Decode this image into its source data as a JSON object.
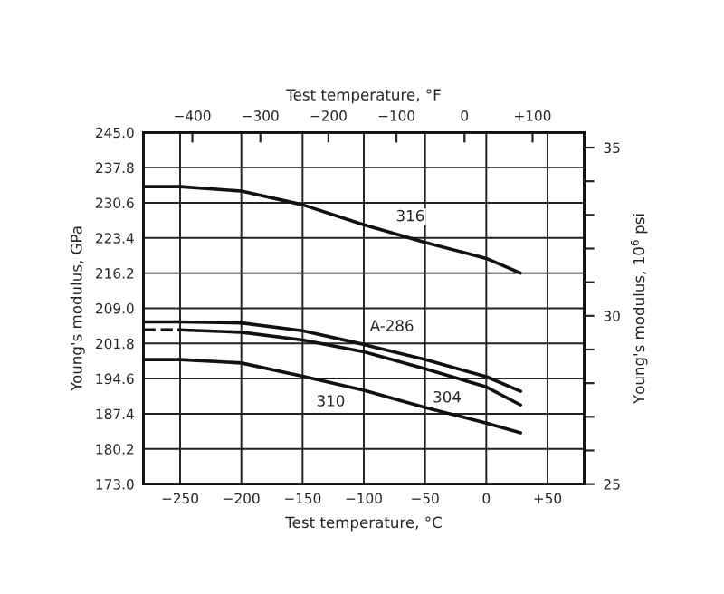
{
  "chart_data": {
    "type": "line",
    "xlabel": "Test temperature, °C",
    "ylabel": "Young's modulus, GPa",
    "y2label": "Young's modulus, 10$^{6}$ psi",
    "x2label": "Test temperature, °F",
    "xlim": [
      -280,
      80
    ],
    "xticks": [
      {
        "value": -250,
        "label": "−250"
      },
      {
        "value": -200,
        "label": "−200"
      },
      {
        "value": -150,
        "label": "−150"
      },
      {
        "value": -100,
        "label": "−100"
      },
      {
        "value": -50,
        "label": "−50"
      },
      0,
      {
        "value": 50,
        "label": "+50"
      }
    ],
    "x2lim": [
      -472,
      176
    ],
    "x2ticks": [
      {
        "value": -400,
        "label": "−400"
      },
      {
        "value": -300,
        "label": "−300"
      },
      {
        "value": -200,
        "label": "−200"
      },
      {
        "value": -100,
        "label": "−100"
      },
      0,
      {
        "value": 100,
        "label": "+100"
      }
    ],
    "ylim": [
      173,
      245
    ],
    "yticks": [
      {
        "value": 173,
        "label": "173.0"
      },
      {
        "value": 180.2,
        "label": "180.2"
      },
      {
        "value": 187.4,
        "label": "187.4"
      },
      {
        "value": 194.6,
        "label": "194.6"
      },
      {
        "value": 201.8,
        "label": "201.8"
      },
      {
        "value": 209,
        "label": "209.0"
      },
      {
        "value": 216.2,
        "label": "216.2"
      },
      {
        "value": 223.4,
        "label": "223.4"
      },
      {
        "value": 230.6,
        "label": "230.6"
      },
      {
        "value": 237.8,
        "label": "237.8"
      },
      {
        "value": 245,
        "label": "245.0"
      }
    ],
    "y2lim": [
      25,
      35.45
    ],
    "y2ticks": [
      25,
      {
        "value": 26,
        "label": null
      },
      {
        "value": 27,
        "label": null
      },
      {
        "value": 28,
        "label": null
      },
      {
        "value": 29,
        "label": null
      },
      30,
      {
        "value": 31,
        "label": null
      },
      {
        "value": 32,
        "label": null
      },
      {
        "value": 33,
        "label": null
      },
      {
        "value": 34,
        "label": null
      },
      35
    ],
    "grid": true,
    "marker": "none",
    "series": [
      {
        "color": "#111111",
        "line_style": "solid",
        "x": [
          -280,
          -250,
          -200,
          -150,
          -100,
          -50,
          0,
          28
        ],
        "values": [
          233.9,
          233.9,
          233.0,
          230.2,
          226.1,
          222.5,
          219.2,
          216.2
        ]
      },
      {
        "color": "#111111",
        "line_style": "solid",
        "x": [
          -280,
          -250,
          -200,
          -150,
          -100,
          -50,
          0,
          28
        ],
        "values": [
          206.2,
          206.2,
          206.0,
          204.4,
          201.6,
          198.5,
          195.0,
          192.0
        ]
      },
      {
        "color": "#111111",
        "line_style": "dashed",
        "x": [
          -280,
          -251
        ],
        "values": [
          204.6,
          204.6
        ]
      },
      {
        "color": "#111111",
        "line_style": "solid",
        "x": [
          -251,
          -200,
          -150,
          -100,
          -50,
          0,
          28
        ],
        "values": [
          204.6,
          204.1,
          202.5,
          200.1,
          196.6,
          192.9,
          189.2
        ]
      },
      {
        "color": "#111111",
        "line_style": "solid",
        "x": [
          -280,
          -250,
          -200,
          -150,
          -100,
          -50,
          0,
          28
        ],
        "values": [
          198.5,
          198.5,
          197.8,
          195.1,
          192.2,
          188.7,
          185.5,
          183.5
        ]
      }
    ],
    "annotations": [
      {
        "text": "316",
        "x": -62,
        "y": 227.7
      },
      {
        "text": "A-286",
        "x": -77,
        "y": 205.2
      },
      {
        "text": "304",
        "x": -32,
        "y": 190.6
      },
      {
        "text": "310",
        "x": -127,
        "y": 189.8
      }
    ]
  }
}
